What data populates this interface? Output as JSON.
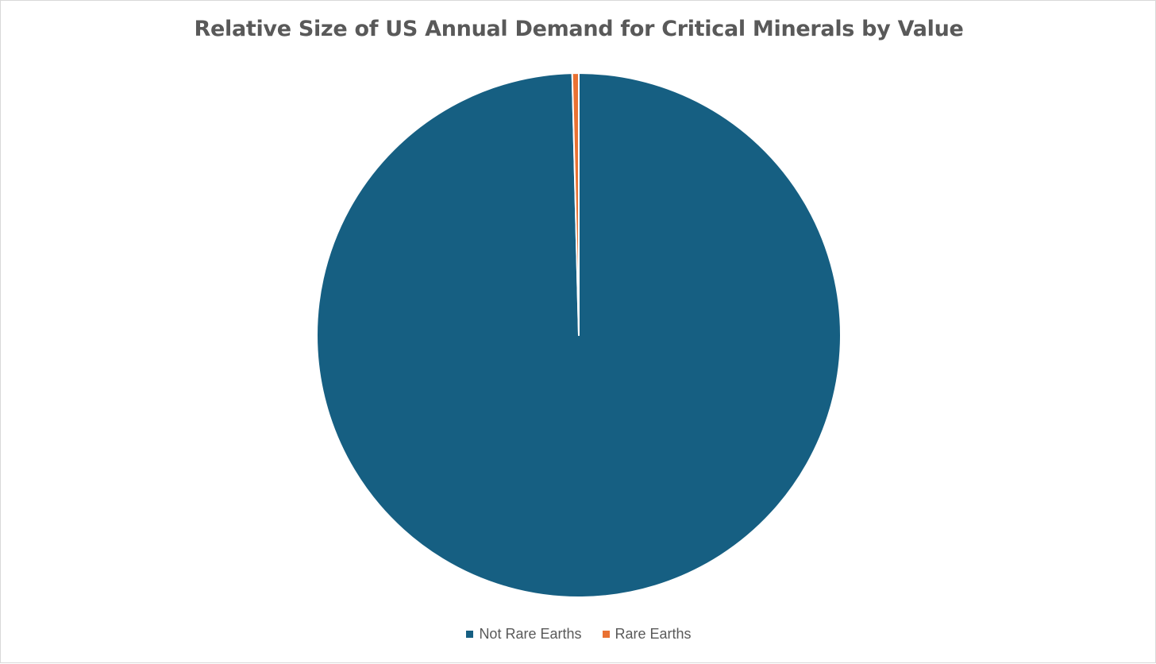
{
  "chart_data": {
    "type": "pie",
    "title": "Relative Size of US Annual Demand for Critical Minerals by Value",
    "slices": [
      {
        "label": "Not Rare Earths",
        "value": 99.6,
        "color": "#165f82"
      },
      {
        "label": "Rare Earths",
        "value": 0.4,
        "color": "#e97132"
      }
    ],
    "start_angle_deg": 0,
    "direction": "clockwise",
    "legend_position": "bottom"
  }
}
